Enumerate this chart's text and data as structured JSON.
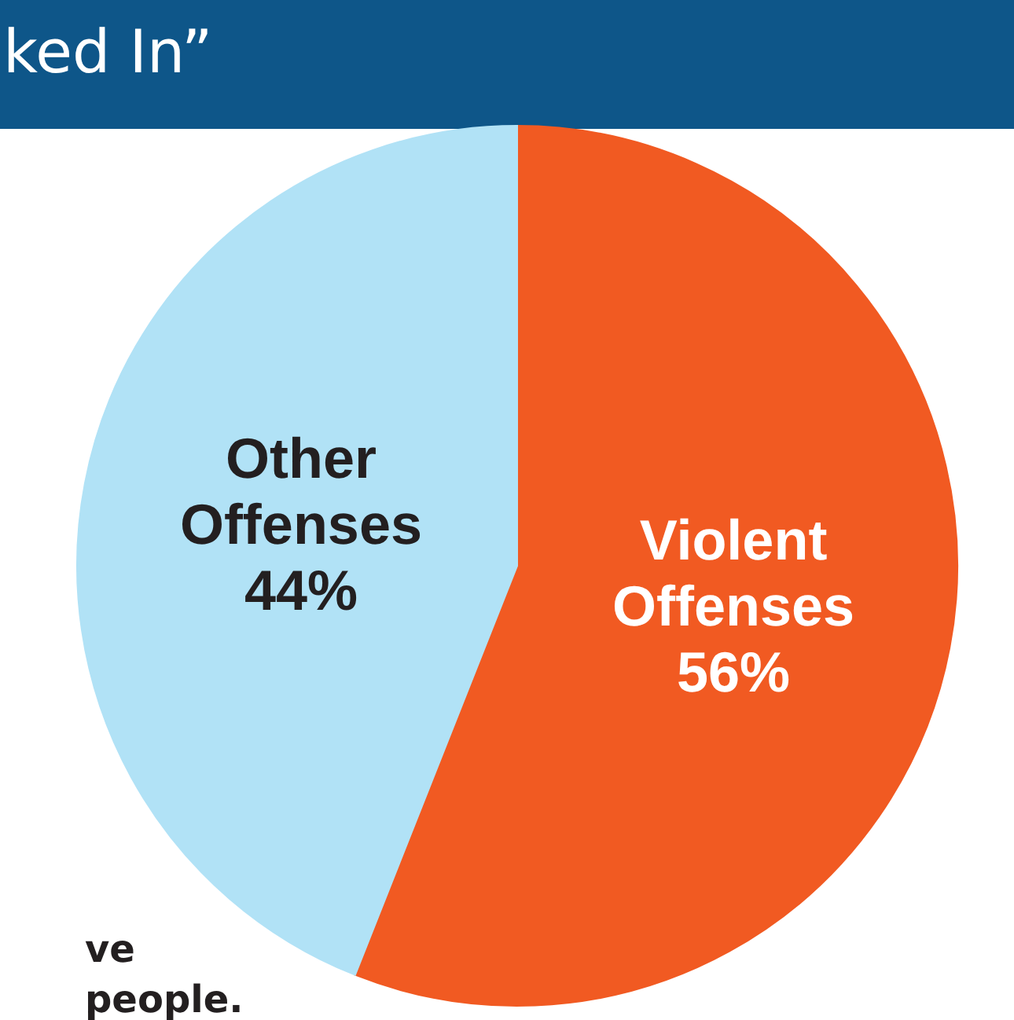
{
  "chart_data": {
    "type": "pie",
    "title": "ked In”",
    "categories": [
      "Violent Offenses",
      "Other Offenses"
    ],
    "values": [
      56,
      44
    ],
    "colors": [
      "#f15a22",
      "#b1e2f6"
    ],
    "data_labels": true,
    "value_labels": [
      "56%",
      "44%"
    ],
    "annotations": [
      "ve",
      "people."
    ]
  }
}
